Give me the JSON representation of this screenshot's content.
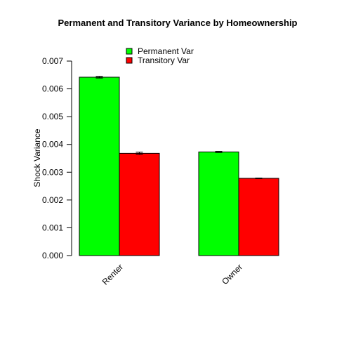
{
  "chart_data": {
    "type": "bar",
    "title": "Permanent and Transitory Variance by  Homeownership",
    "xlabel": "",
    "ylabel": "Shock Variance",
    "categories": [
      "Renter",
      "Owner"
    ],
    "series": [
      {
        "name": "Permanent Var",
        "color": "#00ff00",
        "values": [
          0.00642,
          0.00373
        ],
        "errors": [
          3e-05,
          2e-05
        ]
      },
      {
        "name": "Transitory Var",
        "color": "#ff0000",
        "values": [
          0.00368,
          0.00278
        ],
        "errors": [
          4e-05,
          1e-05
        ]
      }
    ],
    "ylim": [
      0,
      0.007
    ],
    "yticks": [
      "0.000",
      "0.001",
      "0.002",
      "0.003",
      "0.004",
      "0.005",
      "0.006",
      "0.007"
    ],
    "legend_position": "top",
    "grid": false
  }
}
